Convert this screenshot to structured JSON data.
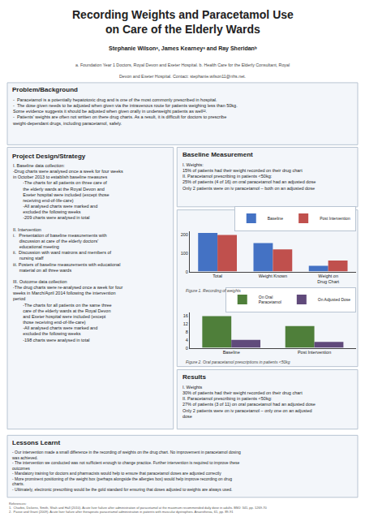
{
  "title": "Recording Weights and Paracetamol Use\non Care of the Elderly Wards",
  "annotations": [
    "Stephanie Wilsonᵃ, James Kearneyᵃ and Ray Sheridanᵇ",
    "a. Foundation Year 1 Doctors, Royal Devon and Exeter Hospital. b. Health Care for the Elderly Consultant, Royal",
    "Devon and Exeter Hospital. Contact: stephanie.wilson11@nhs.net.",
    "Problem/Background",
    "-  Paracetamol is a potentially hepatotoxic drug and is one of the most commonly prescribed in hospital.\n-  The dose given needs to be adjusted when given via the intravenous route for patients weighing less than 50kg.\nSome evidence suggests it should be adjusted when given orally in underweight patients as well¹².\n-  Patients' weights are often not written on there drug charts. As a result, it is difficult for doctors to prescribe\nweight-dependant drugs, including paracetamol, safely.",
    "Project Design/Strategy",
    "I. Baseline data collection:\n-Drug charts were analysed once a week for four weeks\nin October 2013 to establish baseline measures\n        -The charts for all patients on three care of\n        the elderly wards at the Royal Devon and\n        Exeter hospital were included (except those\n        receiving end-of-life-care)\n        -All analysed charts were marked and\n        excluded the following weeks\n        -209 charts were analysed in total\n\nII. Intervention\ni.   Presentation of baseline measurements with\n     discussion at care of the elderly doctors'\n     educational meeting\nii.  Discussion with ward matrons and members of\n     nursing staff\niii. Posters of baseline measurements with educational\n     material on all three wards\n\nIII. Outcome data collection\n-The drug charts were re-analysed once a week for four\nweeks in March/April 2014 following the intervention\nperiod\n        -The charts for all patients on the same three\n        care of the elderly wards at the Royal Devon\n        and Exeter hospital were included (except\n        those receiving end-of-life-care)\n        -All analysed charts were marked and\n        excluded the following weeks\n        -198 charts were analysed in total",
    "Baseline Measurement",
    "I. Weights:\n15% of patients had their weight recorded on their drug chart\nII. Paracetamol prescribing in patients <50kg:\n25% of patients (4 of 16) on oral paracetamol had an adjusted dose\nOnly 2 patients were on iv paracetamol – both on an adjusted dose",
    "Results",
    "I. Weights\n30% of patients had their weight recorded on their drug chart\nII. Paracetamol prescribing in patients <50kg:\n27% of patients (3 of 11) on oral paracetamol had an adjusted dose\nOnly 2 patients were on iv paracetamol – only one on an adjusted\ndose",
    "Lessons Learnt",
    "- Our intervention made a small difference in the recording of weights on the drug chart. No improvement in paracetamol dosing\nwas achieved.\n- The intervention we conducted was not sufficient enough to change practice. Further intervention is required to improve these\noutcomes\n- Mandatory training for doctors and pharmacists would help to ensure that paracetamol doses are adjusted correctly\n- More prominent positioning of the weight box (perhaps alongside the allergies box) would help improve recording on drug\ncharts.\n- Ultimately, electronic prescribing would be the gold standard for ensuring that doses adjusted to weights are always used.",
    "References:\n1.  Charbis, Dickens, Smith, Shah and Hall (2010). Acute liver failure after administration of paracetamol at the maximum recommended daily dose in adults. BMJ: 341, pp. 1269-70\n2.  Passe and Grant (2009). Acute liver failure after therapeutic paracetamol administration in patients with muscular dystrophies. Anaesthesia, 61, pp. 89-91"
  ],
  "chart_data": [
    {
      "type": "bar",
      "title": "Figure 1. Recording of weights",
      "categories": [
        "Total",
        "Weight Known",
        "Weight on\nDrug Chart"
      ],
      "series": [
        {
          "name": "Baseline",
          "color": "#4472C4",
          "values": [
            209,
            155,
            31
          ]
        },
        {
          "name": "Post Intervention",
          "color": "#C0504D",
          "values": [
            198,
            120,
            60
          ]
        }
      ],
      "ylim": [
        0,
        220
      ],
      "yticks": [
        0,
        100,
        200
      ],
      "grid": false,
      "legend": "upper right"
    },
    {
      "type": "bar",
      "title": "Figure 2. Oral paracetamol prescriptions in patients <50kg",
      "categories": [
        "Baseline",
        "Post Intervention"
      ],
      "series": [
        {
          "name": "On Oral\nParacetamol",
          "color": "#4F7F3A",
          "values": [
            16,
            11
          ]
        },
        {
          "name": "On Adjusted Dose",
          "color": "#604A7B",
          "values": [
            4,
            3
          ]
        }
      ],
      "ylim": [
        0,
        18
      ],
      "yticks": [
        0,
        4,
        8,
        12,
        16
      ],
      "grid": false,
      "legend": "upper right"
    }
  ]
}
